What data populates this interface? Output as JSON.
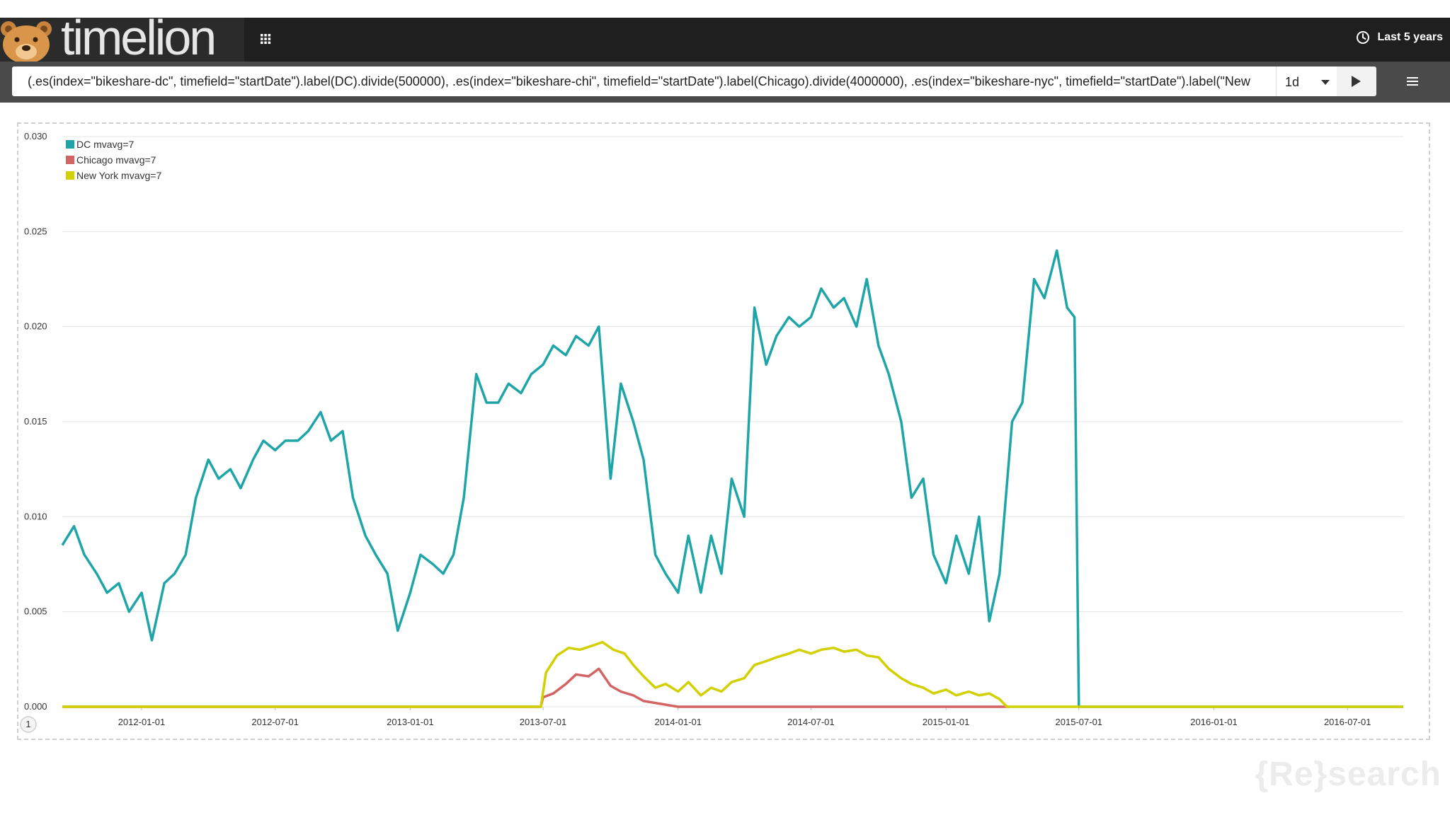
{
  "header": {
    "app_name": "timelion",
    "time_range": "Last 5 years"
  },
  "icons": {
    "logo": "bear-icon",
    "apps": "grid-icon",
    "time": "clock-icon",
    "interval_dropdown": "caret-down-icon",
    "run": "play-icon",
    "menu": "hamburger-icon"
  },
  "query": {
    "expression": "(.es(index=\"bikeshare-dc\", timefield=\"startDate\").label(DC).divide(500000), .es(index=\"bikeshare-chi\", timefield=\"startDate\").label(Chicago).divide(4000000), .es(index=\"bikeshare-nyc\", timefield=\"startDate\").label(\"New",
    "interval": "1d"
  },
  "watermark": "{Re}search",
  "colors": {
    "dc": "#1ea5a8",
    "chicago": "#d36464",
    "new_york": "#d2d000"
  },
  "chart_data": {
    "type": "line",
    "x_type": "date",
    "xlim": [
      "2011-09-15",
      "2016-09-15"
    ],
    "ylim": [
      0,
      0.03
    ],
    "y_ticks": [
      "0.000",
      "0.005",
      "0.010",
      "0.015",
      "0.020",
      "0.025",
      "0.030"
    ],
    "x_ticks": [
      "2012-01-01",
      "2012-07-01",
      "2013-01-01",
      "2013-07-01",
      "2014-01-01",
      "2014-07-01",
      "2015-01-01",
      "2015-07-01",
      "2016-01-01",
      "2016-07-01"
    ],
    "grid": true,
    "legend_position": "top-left",
    "series": [
      {
        "name": "DC mvavg=7",
        "color": "#1ea5a8",
        "points": [
          [
            "2011-09-15",
            0.0085
          ],
          [
            "2011-10-01",
            0.0095
          ],
          [
            "2011-10-15",
            0.008
          ],
          [
            "2011-11-01",
            0.007
          ],
          [
            "2011-11-15",
            0.006
          ],
          [
            "2011-12-01",
            0.0065
          ],
          [
            "2011-12-15",
            0.005
          ],
          [
            "2012-01-01",
            0.006
          ],
          [
            "2012-01-15",
            0.0035
          ],
          [
            "2012-02-01",
            0.0065
          ],
          [
            "2012-02-15",
            0.007
          ],
          [
            "2012-03-01",
            0.008
          ],
          [
            "2012-03-15",
            0.011
          ],
          [
            "2012-04-01",
            0.013
          ],
          [
            "2012-04-15",
            0.012
          ],
          [
            "2012-05-01",
            0.0125
          ],
          [
            "2012-05-15",
            0.0115
          ],
          [
            "2012-06-01",
            0.013
          ],
          [
            "2012-06-15",
            0.014
          ],
          [
            "2012-07-01",
            0.0135
          ],
          [
            "2012-07-15",
            0.014
          ],
          [
            "2012-08-01",
            0.014
          ],
          [
            "2012-08-15",
            0.0145
          ],
          [
            "2012-09-01",
            0.0155
          ],
          [
            "2012-09-15",
            0.014
          ],
          [
            "2012-10-01",
            0.0145
          ],
          [
            "2012-10-15",
            0.011
          ],
          [
            "2012-11-01",
            0.009
          ],
          [
            "2012-11-15",
            0.008
          ],
          [
            "2012-12-01",
            0.007
          ],
          [
            "2012-12-15",
            0.004
          ],
          [
            "2013-01-01",
            0.006
          ],
          [
            "2013-01-15",
            0.008
          ],
          [
            "2013-02-01",
            0.0075
          ],
          [
            "2013-02-15",
            0.007
          ],
          [
            "2013-03-01",
            0.008
          ],
          [
            "2013-03-15",
            0.011
          ],
          [
            "2013-04-01",
            0.0175
          ],
          [
            "2013-04-15",
            0.016
          ],
          [
            "2013-05-01",
            0.016
          ],
          [
            "2013-05-15",
            0.017
          ],
          [
            "2013-06-01",
            0.0165
          ],
          [
            "2013-06-15",
            0.0175
          ],
          [
            "2013-07-01",
            0.018
          ],
          [
            "2013-07-15",
            0.019
          ],
          [
            "2013-08-01",
            0.0185
          ],
          [
            "2013-08-15",
            0.0195
          ],
          [
            "2013-09-01",
            0.019
          ],
          [
            "2013-09-15",
            0.02
          ],
          [
            "2013-10-01",
            0.012
          ],
          [
            "2013-10-15",
            0.017
          ],
          [
            "2013-11-01",
            0.015
          ],
          [
            "2013-11-15",
            0.013
          ],
          [
            "2013-12-01",
            0.008
          ],
          [
            "2013-12-15",
            0.007
          ],
          [
            "2014-01-01",
            0.006
          ],
          [
            "2014-01-15",
            0.009
          ],
          [
            "2014-02-01",
            0.006
          ],
          [
            "2014-02-15",
            0.009
          ],
          [
            "2014-03-01",
            0.007
          ],
          [
            "2014-03-15",
            0.012
          ],
          [
            "2014-04-01",
            0.01
          ],
          [
            "2014-04-15",
            0.021
          ],
          [
            "2014-05-01",
            0.018
          ],
          [
            "2014-05-15",
            0.0195
          ],
          [
            "2014-06-01",
            0.0205
          ],
          [
            "2014-06-15",
            0.02
          ],
          [
            "2014-07-01",
            0.0205
          ],
          [
            "2014-07-15",
            0.022
          ],
          [
            "2014-08-01",
            0.021
          ],
          [
            "2014-08-15",
            0.0215
          ],
          [
            "2014-09-01",
            0.02
          ],
          [
            "2014-09-15",
            0.0225
          ],
          [
            "2014-10-01",
            0.019
          ],
          [
            "2014-10-15",
            0.0175
          ],
          [
            "2014-11-01",
            0.015
          ],
          [
            "2014-11-15",
            0.011
          ],
          [
            "2014-12-01",
            0.012
          ],
          [
            "2014-12-15",
            0.008
          ],
          [
            "2015-01-01",
            0.0065
          ],
          [
            "2015-01-15",
            0.009
          ],
          [
            "2015-02-01",
            0.007
          ],
          [
            "2015-02-15",
            0.01
          ],
          [
            "2015-03-01",
            0.0045
          ],
          [
            "2015-03-15",
            0.007
          ],
          [
            "2015-04-01",
            0.015
          ],
          [
            "2015-04-15",
            0.016
          ],
          [
            "2015-05-01",
            0.0225
          ],
          [
            "2015-05-15",
            0.0215
          ],
          [
            "2015-06-01",
            0.024
          ],
          [
            "2015-06-15",
            0.021
          ],
          [
            "2015-06-25",
            0.0205
          ],
          [
            "2015-07-01",
            0.0
          ],
          [
            "2016-09-15",
            0.0
          ]
        ]
      },
      {
        "name": "Chicago mvavg=7",
        "color": "#d36464",
        "points": [
          [
            "2011-09-15",
            0.0
          ],
          [
            "2013-06-28",
            0.0
          ],
          [
            "2013-07-01",
            0.0005
          ],
          [
            "2013-07-15",
            0.0007
          ],
          [
            "2013-08-01",
            0.0012
          ],
          [
            "2013-08-15",
            0.0017
          ],
          [
            "2013-09-01",
            0.0016
          ],
          [
            "2013-09-15",
            0.002
          ],
          [
            "2013-10-01",
            0.0011
          ],
          [
            "2013-10-15",
            0.0008
          ],
          [
            "2013-11-01",
            0.0006
          ],
          [
            "2013-11-15",
            0.0003
          ],
          [
            "2013-12-01",
            0.0002
          ],
          [
            "2014-01-01",
            0.0
          ],
          [
            "2015-03-28",
            0.0
          ]
        ]
      },
      {
        "name": "New York mvavg=7",
        "color": "#d2d000",
        "points": [
          [
            "2011-09-15",
            0.0
          ],
          [
            "2013-06-28",
            0.0
          ],
          [
            "2013-07-05",
            0.0018
          ],
          [
            "2013-07-20",
            0.0027
          ],
          [
            "2013-08-05",
            0.0031
          ],
          [
            "2013-08-20",
            0.003
          ],
          [
            "2013-09-05",
            0.0032
          ],
          [
            "2013-09-20",
            0.0034
          ],
          [
            "2013-10-05",
            0.003
          ],
          [
            "2013-10-20",
            0.0028
          ],
          [
            "2013-11-01",
            0.0022
          ],
          [
            "2013-11-15",
            0.0016
          ],
          [
            "2013-12-01",
            0.001
          ],
          [
            "2013-12-15",
            0.0012
          ],
          [
            "2014-01-01",
            0.0008
          ],
          [
            "2014-01-15",
            0.0013
          ],
          [
            "2014-02-01",
            0.0006
          ],
          [
            "2014-02-15",
            0.001
          ],
          [
            "2014-03-01",
            0.0008
          ],
          [
            "2014-03-15",
            0.0013
          ],
          [
            "2014-04-01",
            0.0015
          ],
          [
            "2014-04-15",
            0.0022
          ],
          [
            "2014-05-01",
            0.0024
          ],
          [
            "2014-05-15",
            0.0026
          ],
          [
            "2014-06-01",
            0.0028
          ],
          [
            "2014-06-15",
            0.003
          ],
          [
            "2014-07-01",
            0.0028
          ],
          [
            "2014-07-15",
            0.003
          ],
          [
            "2014-08-01",
            0.0031
          ],
          [
            "2014-08-15",
            0.0029
          ],
          [
            "2014-09-01",
            0.003
          ],
          [
            "2014-09-15",
            0.0027
          ],
          [
            "2014-10-01",
            0.0026
          ],
          [
            "2014-10-15",
            0.002
          ],
          [
            "2014-11-01",
            0.0015
          ],
          [
            "2014-11-15",
            0.0012
          ],
          [
            "2014-12-01",
            0.001
          ],
          [
            "2014-12-15",
            0.0007
          ],
          [
            "2015-01-01",
            0.0009
          ],
          [
            "2015-01-15",
            0.0006
          ],
          [
            "2015-02-01",
            0.0008
          ],
          [
            "2015-02-15",
            0.0006
          ],
          [
            "2015-03-01",
            0.0007
          ],
          [
            "2015-03-15",
            0.0004
          ],
          [
            "2015-03-25",
            0.0
          ],
          [
            "2016-09-15",
            0.0
          ]
        ]
      }
    ]
  }
}
